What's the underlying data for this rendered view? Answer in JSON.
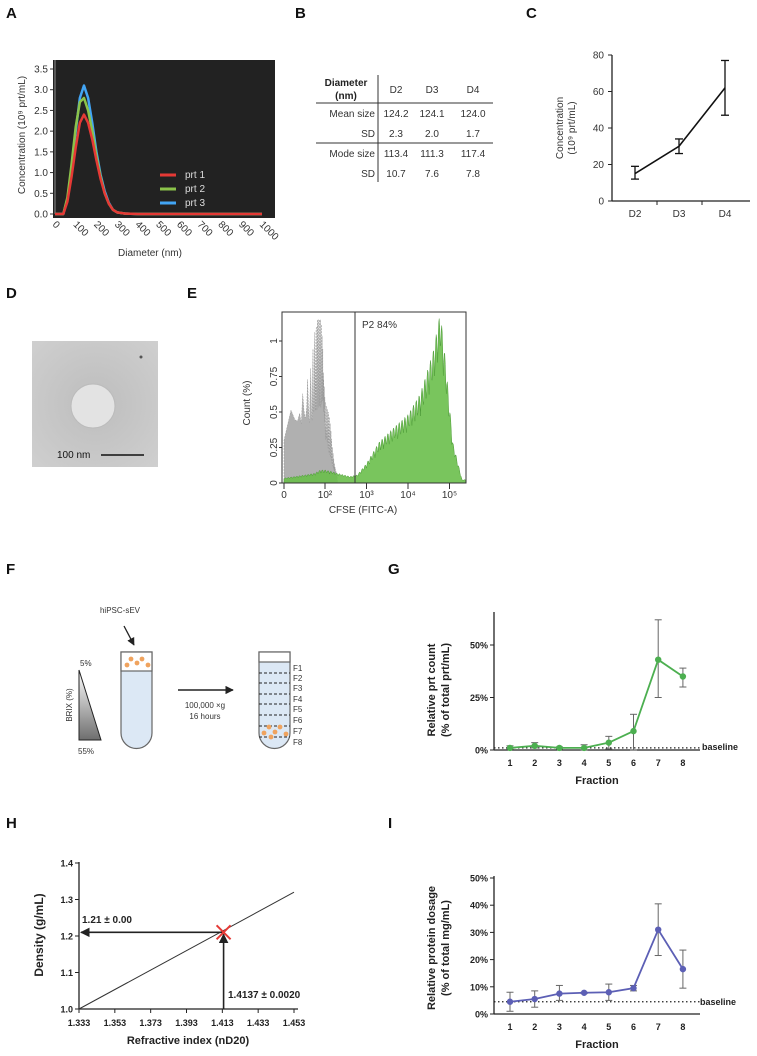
{
  "panels": {
    "A": {
      "label": "A",
      "legend": [
        "prt 1",
        "prt 2",
        "prt 3"
      ]
    },
    "B": {
      "label": "B"
    },
    "C": {
      "label": "C"
    },
    "D": {
      "label": "D",
      "scale_bar": "100 nm"
    },
    "E": {
      "label": "E",
      "gate": "P2 84%"
    },
    "F": {
      "label": "F",
      "sample": "hiPSC-sEV",
      "gradient_top": "5%",
      "gradient_bottom": "55%",
      "gradient_label": "BRIX (%)",
      "spin_speed": "100,000 ×g",
      "spin_time": "16 hours",
      "fractions": [
        "F1",
        "F2",
        "F3",
        "F4",
        "F5",
        "F6",
        "F7",
        "F8"
      ]
    },
    "G": {
      "label": "G",
      "baseline": "baseline"
    },
    "H": {
      "label": "H",
      "density_label": "1.21 ± 0.00",
      "ri_label": "1.4137 ± 0.0020"
    },
    "I": {
      "label": "I",
      "baseline": "baseline"
    }
  },
  "colors": {
    "prt1": "#e53935",
    "prt2": "#8bc34a",
    "prt3": "#42a5f5",
    "green": "#4caf50",
    "hist_green": "#6abf4b",
    "hist_gray": "#b0b0b0",
    "blue": "#5c5fb5",
    "tube": "#dce8f5",
    "dot": "#f0a35e",
    "marker": "#e53935"
  },
  "chart_data": [
    {
      "panel": "A",
      "type": "line",
      "xlabel": "Diameter (nm)",
      "ylabel": "Concentration (10⁹ prt/mL)",
      "xlim": [
        0,
        1000
      ],
      "ylim": [
        0,
        3.5
      ],
      "xticks": [
        "0",
        "100",
        "200",
        "300",
        "400",
        "500",
        "600",
        "700",
        "800",
        "900",
        "1000"
      ],
      "yticks": [
        "0.0",
        "0.5",
        "1.0",
        "1.5",
        "2.0",
        "2.5",
        "3.0",
        "3.5"
      ],
      "background": "#222222",
      "series": [
        {
          "name": "prt 1",
          "x": [
            0,
            40,
            60,
            80,
            100,
            120,
            140,
            160,
            180,
            200,
            220,
            240,
            260,
            280,
            300,
            340,
            400,
            1000
          ],
          "values": [
            0,
            0,
            0.3,
            0.9,
            1.6,
            2.2,
            2.4,
            2.2,
            1.8,
            1.3,
            0.85,
            0.5,
            0.25,
            0.1,
            0.04,
            0.01,
            0,
            0
          ]
        },
        {
          "name": "prt 2",
          "x": [
            0,
            40,
            60,
            80,
            100,
            120,
            140,
            160,
            180,
            200,
            220,
            240,
            260,
            280,
            300,
            340,
            400,
            1000
          ],
          "values": [
            0,
            0,
            0.4,
            1.2,
            2.1,
            2.7,
            2.8,
            2.5,
            2.0,
            1.4,
            0.9,
            0.5,
            0.25,
            0.1,
            0.04,
            0.01,
            0,
            0
          ]
        },
        {
          "name": "prt 3",
          "x": [
            0,
            40,
            60,
            80,
            100,
            120,
            140,
            160,
            180,
            200,
            220,
            240,
            260,
            280,
            300,
            340,
            400,
            1000
          ],
          "values": [
            0,
            0,
            0.35,
            1.1,
            2.0,
            2.8,
            3.1,
            2.8,
            2.2,
            1.5,
            0.95,
            0.55,
            0.27,
            0.1,
            0.04,
            0.01,
            0,
            0
          ]
        }
      ]
    },
    {
      "panel": "B",
      "type": "table",
      "header": [
        "Diameter",
        "(nm)"
      ],
      "columns": [
        "D2",
        "D3",
        "D4"
      ],
      "rows": [
        {
          "label": "Mean size",
          "values": [
            "124.2",
            "124.1",
            "124.0"
          ]
        },
        {
          "label": "SD",
          "values": [
            "2.3",
            "2.0",
            "1.7"
          ]
        },
        {
          "label": "Mode size",
          "values": [
            "113.4",
            "111.3",
            "117.4"
          ]
        },
        {
          "label": "SD",
          "values": [
            "10.7",
            "7.6",
            "7.8"
          ]
        }
      ]
    },
    {
      "panel": "C",
      "type": "line",
      "ylabel": [
        "Concentration",
        "(10⁹ prt/mL)"
      ],
      "categories": [
        "D2",
        "D3",
        "D4"
      ],
      "values": [
        15,
        30,
        62
      ],
      "err_low": [
        12,
        26,
        47
      ],
      "err_high": [
        19,
        34,
        77
      ],
      "ylim": [
        0,
        80
      ],
      "yticks": [
        "0",
        "20",
        "40",
        "60",
        "80"
      ]
    },
    {
      "panel": "E",
      "type": "area",
      "xlabel": "CFSE (FITC-A)",
      "ylabel": "Count (%)",
      "xscale": "biexponential",
      "xticks": [
        "0",
        "10²",
        "10³",
        "10⁴",
        "10⁵"
      ],
      "yticks": [
        "0",
        "0.25",
        "0.5",
        "0.75",
        "1"
      ],
      "ylim": [
        0,
        1.2
      ],
      "gate_x": 500,
      "series": [
        {
          "x": [
            0,
            10,
            30,
            60,
            100,
            150,
            200,
            400,
            600,
            1000,
            2000,
            5000,
            10000,
            20000,
            40000,
            60000,
            80000,
            120000,
            200000
          ],
          "values": [
            0.03,
            0.05,
            0.06,
            0.08,
            0.08,
            0.07,
            0.06,
            0.04,
            0.05,
            0.12,
            0.25,
            0.35,
            0.42,
            0.55,
            0.8,
            1.05,
            0.75,
            0.25,
            0.02
          ]
        },
        {
          "x": [
            0,
            5,
            10,
            20,
            30,
            50,
            80,
            100,
            150,
            200
          ],
          "values": [
            0.5,
            0.55,
            0.6,
            0.65,
            0.8,
            0.9,
            0.85,
            0.5,
            0.2,
            0.02
          ]
        }
      ]
    },
    {
      "panel": "G",
      "type": "line",
      "xlabel": "Fraction",
      "ylabel": [
        "Relative prt count",
        "(% of total prt/mL)"
      ],
      "categories": [
        "1",
        "2",
        "3",
        "4",
        "5",
        "6",
        "7",
        "8"
      ],
      "values": [
        1,
        2,
        1,
        1,
        3.5,
        9,
        43,
        35
      ],
      "err_low": [
        0.5,
        1,
        0.5,
        0,
        0.5,
        0,
        25,
        30
      ],
      "err_high": [
        2,
        3.5,
        1.5,
        2.5,
        6.5,
        17,
        62,
        39
      ],
      "ylim": [
        0,
        65
      ],
      "yticks": [
        "0%",
        "25%",
        "50%"
      ],
      "baseline": 1
    },
    {
      "panel": "H",
      "type": "line",
      "xlabel": "Refractive index (nD20)",
      "ylabel": "Density (g/mL)",
      "x": [
        1.333,
        1.453
      ],
      "values": [
        1.0,
        1.32
      ],
      "xlim": [
        1.333,
        1.453
      ],
      "ylim": [
        1.0,
        1.4
      ],
      "xticks": [
        "1.333",
        "1.353",
        "1.373",
        "1.393",
        "1.413",
        "1.433",
        "1.453"
      ],
      "yticks": [
        "1.0",
        "1.1",
        "1.2",
        "1.3",
        "1.4"
      ],
      "point": {
        "x": 1.4137,
        "y": 1.21
      }
    },
    {
      "panel": "I",
      "type": "line",
      "xlabel": "Fraction",
      "ylabel": [
        "Relative protein dosage",
        "(% of total mg/mL)"
      ],
      "categories": [
        "1",
        "2",
        "3",
        "4",
        "5",
        "6",
        "7",
        "8"
      ],
      "values": [
        4.5,
        5.5,
        7.5,
        7.8,
        8,
        9.5,
        31,
        16.5
      ],
      "err_low": [
        1,
        2.5,
        5,
        7.5,
        5,
        8.5,
        21.5,
        9.5
      ],
      "err_high": [
        8,
        8.5,
        10.5,
        8,
        11,
        10.5,
        40.5,
        23.5
      ],
      "ylim": [
        0,
        50
      ],
      "yticks": [
        "0%",
        "10%",
        "20%",
        "30%",
        "40%",
        "50%"
      ],
      "baseline": 4.5
    }
  ]
}
